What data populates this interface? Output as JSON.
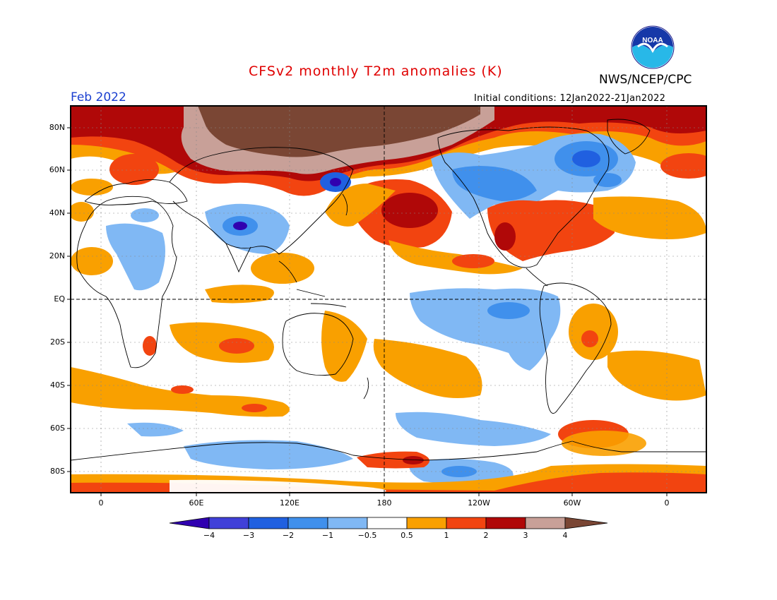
{
  "header": {
    "title": "CFSv2 monthly T2m anomalies (K)",
    "agency": "NWS/NCEP/CPC",
    "logo_text": "NOAA",
    "month": "Feb 2022",
    "initial_conditions": "Initial conditions: 12Jan2022-21Jan2022"
  },
  "map": {
    "projection": "cylindrical equidistant",
    "lat_labels": [
      "80N",
      "60N",
      "40N",
      "20N",
      "EQ",
      "20S",
      "40S",
      "60S",
      "80S"
    ],
    "lon_labels": [
      "0",
      "60E",
      "120E",
      "180",
      "120W",
      "60W",
      "0"
    ],
    "grid": "dotted",
    "highlight_lines": [
      "equator",
      "dateline"
    ]
  },
  "colorbar": {
    "tick_labels": [
      "-4",
      "-3",
      "-2",
      "-1",
      "-0.5",
      "0.5",
      "1",
      "2",
      "3",
      "4"
    ],
    "colors": [
      "#3000b0",
      "#4040d8",
      "#2060e0",
      "#4090ec",
      "#80b8f4",
      "#ffffff",
      "#f9a000",
      "#f24410",
      "#b00808",
      "#c8a098",
      "#7a4634"
    ]
  },
  "colors": {
    "title": "#e00000",
    "month": "#1a3fd0",
    "ocean_background": "#ffffff"
  }
}
